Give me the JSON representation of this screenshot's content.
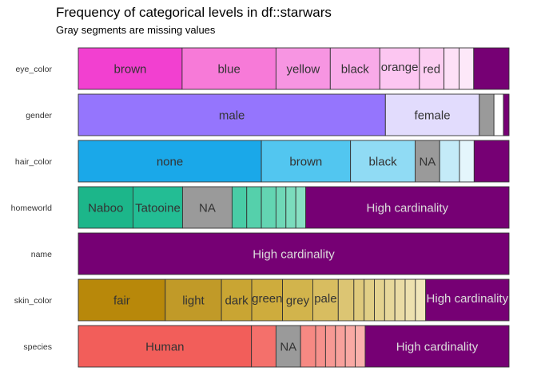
{
  "chart_data": {
    "type": "bar",
    "title": "Frequency of categorical levels in df::starwars",
    "subtitle": "Gray segments are missing values",
    "xlim": [
      0,
      1
    ],
    "rows": [
      {
        "name": "eye_color",
        "segments": [
          {
            "label": "brown",
            "value": 0.241,
            "color": "#f240d0",
            "label_color": "#333333"
          },
          {
            "label": "blue",
            "value": 0.218,
            "color": "#f77ad8",
            "label_color": "#333333"
          },
          {
            "label": "yellow",
            "value": 0.126,
            "color": "#f795e2",
            "label_color": "#333333"
          },
          {
            "label": "black",
            "value": 0.115,
            "color": "#f9aae9",
            "label_color": "#333333"
          },
          {
            "label": "orange",
            "value": 0.092,
            "color": "#fcc6f1",
            "label_color": "#333333"
          },
          {
            "label": "red",
            "value": 0.057,
            "color": "#fccff2",
            "label_color": "#333333"
          },
          {
            "label": "",
            "value": 0.035,
            "color": "#fde0f7",
            "label_color": "#333333"
          },
          {
            "label": "",
            "value": 0.034,
            "color": "#fde8f9",
            "label_color": "#333333"
          },
          {
            "label": "",
            "value": 0.082,
            "color": "#760074",
            "label_color": "#dddddd"
          }
        ]
      },
      {
        "name": "gender",
        "segments": [
          {
            "label": "male",
            "value": 0.713,
            "color": "#9575fd",
            "label_color": "#333333"
          },
          {
            "label": "female",
            "value": 0.218,
            "color": "#e2dcfd",
            "label_color": "#333333"
          },
          {
            "label": "",
            "value": 0.034,
            "color": "#9a9a9a",
            "label_color": "#333333"
          },
          {
            "label": "",
            "value": 0.022,
            "color": "#ffffff",
            "label_color": "#333333"
          },
          {
            "label": "",
            "value": 0.013,
            "color": "#760074",
            "label_color": "#dddddd"
          }
        ]
      },
      {
        "name": "hair_color",
        "segments": [
          {
            "label": "none",
            "value": 0.425,
            "color": "#1aa8e9",
            "label_color": "#333333"
          },
          {
            "label": "brown",
            "value": 0.207,
            "color": "#52c6f0",
            "label_color": "#333333"
          },
          {
            "label": "black",
            "value": 0.15,
            "color": "#90dbf4",
            "label_color": "#333333"
          },
          {
            "label": "NA",
            "value": 0.057,
            "color": "#9a9a9a",
            "label_color": "#333333"
          },
          {
            "label": "",
            "value": 0.046,
            "color": "#c4ebf8",
            "label_color": "#333333"
          },
          {
            "label": "",
            "value": 0.034,
            "color": "#e4f6fc",
            "label_color": "#333333"
          },
          {
            "label": "",
            "value": 0.081,
            "color": "#760074",
            "label_color": "#dddddd"
          }
        ]
      },
      {
        "name": "homeworld",
        "segments": [
          {
            "label": "Naboo",
            "value": 0.127,
            "color": "#1cb68a",
            "label_color": "#333333"
          },
          {
            "label": "Tatooine",
            "value": 0.115,
            "color": "#23bd94",
            "label_color": "#333333"
          },
          {
            "label": "NA",
            "value": 0.115,
            "color": "#9a9a9a",
            "label_color": "#333333"
          },
          {
            "label": "",
            "value": 0.034,
            "color": "#49cca6",
            "label_color": "#333333"
          },
          {
            "label": "",
            "value": 0.034,
            "color": "#55d0ab",
            "label_color": "#333333"
          },
          {
            "label": "",
            "value": 0.034,
            "color": "#63d5b2",
            "label_color": "#333333"
          },
          {
            "label": "",
            "value": 0.023,
            "color": "#6fd8b7",
            "label_color": "#333333"
          },
          {
            "label": "",
            "value": 0.023,
            "color": "#7bdcbd",
            "label_color": "#333333"
          },
          {
            "label": "",
            "value": 0.023,
            "color": "#88e0c3",
            "label_color": "#333333"
          },
          {
            "label": "High cardinality",
            "value": 0.472,
            "color": "#760074",
            "label_color": "#dddddd"
          }
        ]
      },
      {
        "name": "name",
        "segments": [
          {
            "label": "High cardinality",
            "value": 1.0,
            "color": "#760074",
            "label_color": "#dddddd"
          }
        ]
      },
      {
        "name": "skin_color",
        "segments": [
          {
            "label": "fair",
            "value": 0.195,
            "color": "#b8880a",
            "label_color": "#333333"
          },
          {
            "label": "light",
            "value": 0.126,
            "color": "#c19a28",
            "label_color": "#333333"
          },
          {
            "label": "dark",
            "value": 0.068,
            "color": "#c9a533",
            "label_color": "#333333"
          },
          {
            "label": "green",
            "value": 0.069,
            "color": "#ceac3d",
            "label_color": "#333333"
          },
          {
            "label": "grey",
            "value": 0.068,
            "color": "#d2b44c",
            "label_color": "#333333"
          },
          {
            "label": "pale",
            "value": 0.057,
            "color": "#d8bd60",
            "label_color": "#333333"
          },
          {
            "label": "",
            "value": 0.035,
            "color": "#dcc573",
            "label_color": "#333333"
          },
          {
            "label": "",
            "value": 0.023,
            "color": "#dfca7c",
            "label_color": "#333333"
          },
          {
            "label": "",
            "value": 0.023,
            "color": "#e1cf86",
            "label_color": "#333333"
          },
          {
            "label": "",
            "value": 0.023,
            "color": "#e4d390",
            "label_color": "#333333"
          },
          {
            "label": "",
            "value": 0.023,
            "color": "#e7d89b",
            "label_color": "#333333"
          },
          {
            "label": "",
            "value": 0.023,
            "color": "#eadca5",
            "label_color": "#333333"
          },
          {
            "label": "",
            "value": 0.023,
            "color": "#ede1af",
            "label_color": "#333333"
          },
          {
            "label": "",
            "value": 0.023,
            "color": "#f0e6ba",
            "label_color": "#333333"
          },
          {
            "label": "High cardinality",
            "value": 0.187,
            "color": "#760074",
            "label_color": "#dddddd"
          }
        ]
      },
      {
        "name": "species",
        "segments": [
          {
            "label": "Human",
            "value": 0.402,
            "color": "#f25e5a",
            "label_color": "#333333"
          },
          {
            "label": "",
            "value": 0.057,
            "color": "#f4706b",
            "label_color": "#333333"
          },
          {
            "label": "NA",
            "value": 0.057,
            "color": "#9a9a9a",
            "label_color": "#333333"
          },
          {
            "label": "",
            "value": 0.035,
            "color": "#f68983",
            "label_color": "#333333"
          },
          {
            "label": "",
            "value": 0.023,
            "color": "#f6918c",
            "label_color": "#333333"
          },
          {
            "label": "",
            "value": 0.023,
            "color": "#f79994",
            "label_color": "#333333"
          },
          {
            "label": "",
            "value": 0.023,
            "color": "#f8a19c",
            "label_color": "#333333"
          },
          {
            "label": "",
            "value": 0.023,
            "color": "#f9a9a4",
            "label_color": "#333333"
          },
          {
            "label": "",
            "value": 0.023,
            "color": "#f9b1ac",
            "label_color": "#333333"
          },
          {
            "label": "High cardinality",
            "value": 0.334,
            "color": "#760074",
            "label_color": "#dddddd"
          }
        ]
      }
    ]
  }
}
